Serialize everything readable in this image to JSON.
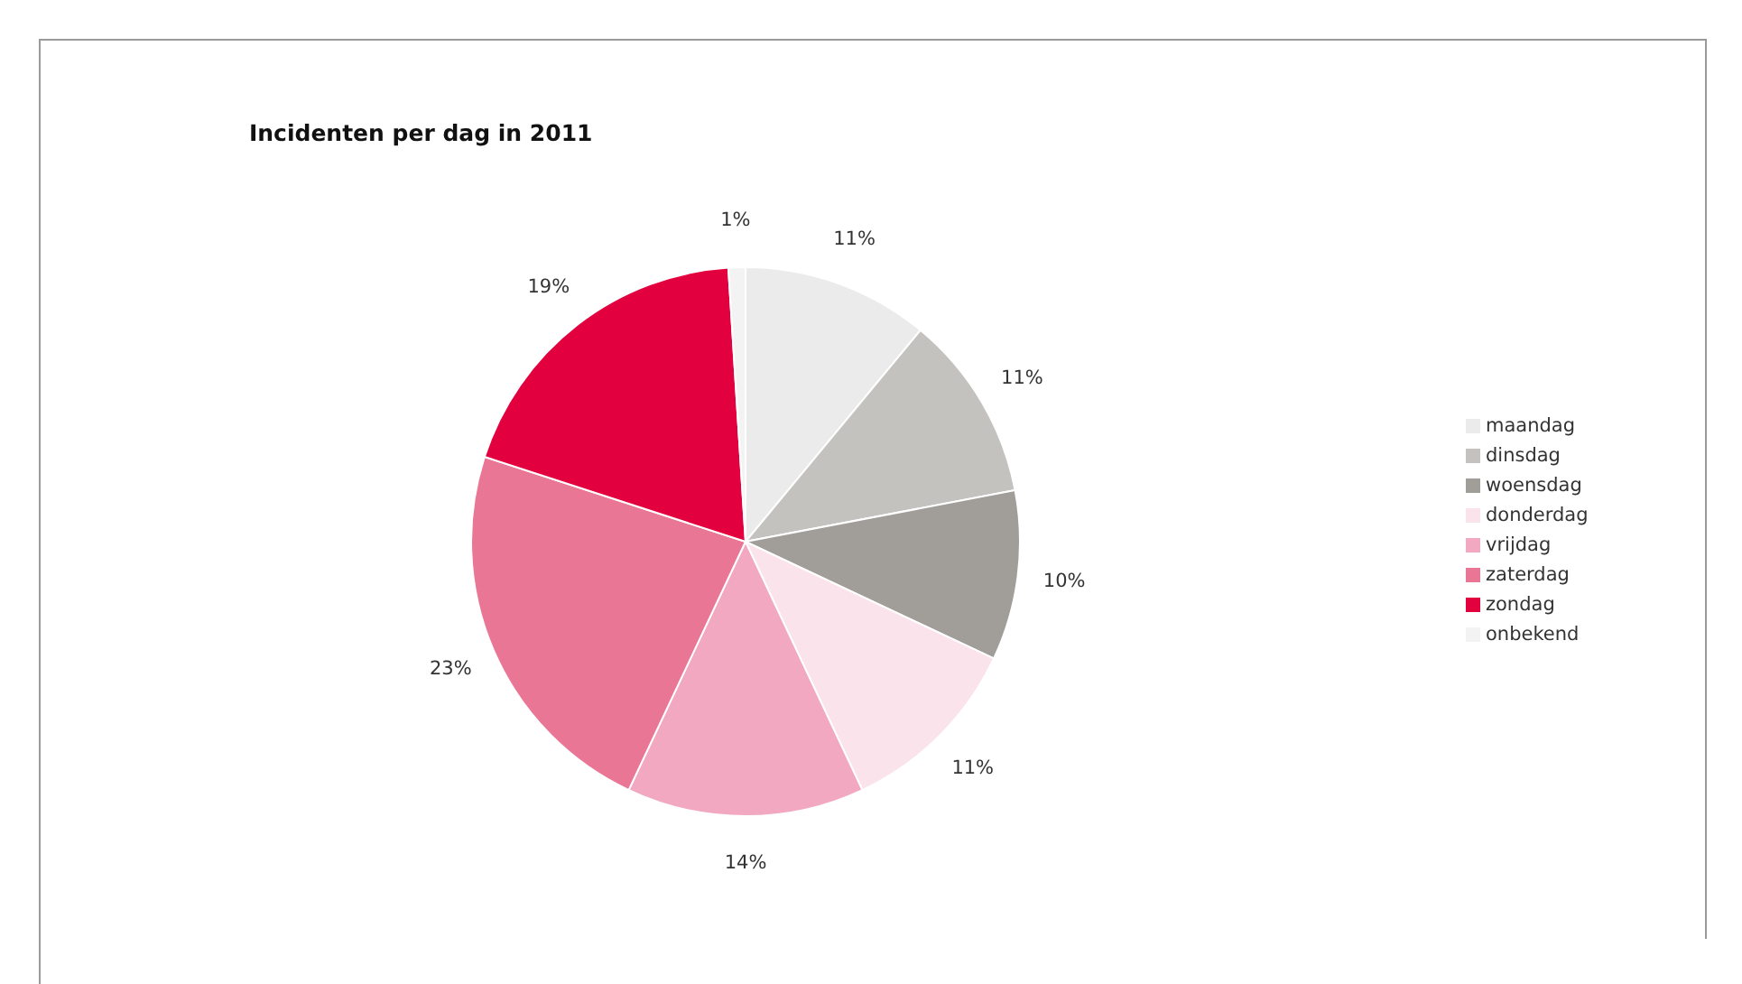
{
  "chart_data": {
    "type": "pie",
    "title": "Incidenten per dag in 2011",
    "categories": [
      "maandag",
      "dinsdag",
      "woensdag",
      "donderdag",
      "vrijdag",
      "zaterdag",
      "zondag",
      "onbekend"
    ],
    "values": [
      11,
      11,
      10,
      11,
      14,
      23,
      19,
      1
    ],
    "value_labels": [
      "11%",
      "11%",
      "10%",
      "11%",
      "14%",
      "23%",
      "19%",
      "1%"
    ],
    "colors": [
      "#ebebeb",
      "#c4c2be",
      "#a19e9a",
      "#fae3ea",
      "#f2a8c0",
      "#ea7695",
      "#e2003e",
      "#f3f3f3"
    ],
    "legend": "right"
  }
}
